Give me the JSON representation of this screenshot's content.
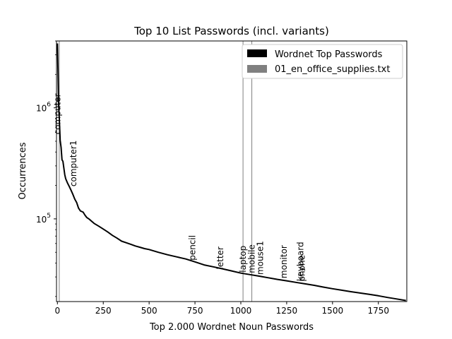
{
  "chart_data": {
    "type": "line",
    "title": "Top 10 List Passwords (incl. variants)",
    "xlabel": "Top 2.000 Wordnet Noun Passwords",
    "ylabel": "Occurrences",
    "yscale": "log",
    "xlim": [
      -5,
      1905
    ],
    "ylim": [
      18000,
      4000000
    ],
    "x_ticks": [
      {
        "value": 0,
        "label": "0"
      },
      {
        "value": 250,
        "label": "250"
      },
      {
        "value": 500,
        "label": "500"
      },
      {
        "value": 750,
        "label": "750"
      },
      {
        "value": 1000,
        "label": "1000"
      },
      {
        "value": 1250,
        "label": "1250"
      },
      {
        "value": 1500,
        "label": "1500"
      },
      {
        "value": 1750,
        "label": "1750"
      }
    ],
    "y_ticks": [
      {
        "value": 100000,
        "base": "10",
        "exp": "5"
      },
      {
        "value": 1000000,
        "base": "10",
        "exp": "6"
      }
    ],
    "legend_position": "top-right",
    "series": [
      {
        "name": "Wordnet Top Passwords",
        "color": "#000000",
        "x": [
          0,
          3,
          6,
          10,
          15,
          20,
          25,
          30,
          40,
          45,
          55,
          65,
          75,
          85,
          95,
          105,
          115,
          125,
          140,
          150,
          160,
          175,
          200,
          225,
          250,
          275,
          300,
          325,
          350,
          375,
          400,
          425,
          450,
          475,
          500,
          550,
          600,
          650,
          700,
          750,
          800,
          850,
          900,
          950,
          1000,
          1050,
          1100,
          1150,
          1200,
          1250,
          1300,
          1350,
          1400,
          1450,
          1500,
          1550,
          1600,
          1650,
          1700,
          1750,
          1800,
          1850,
          1900
        ],
        "values": [
          3800000,
          2200000,
          1100000,
          820000,
          510000,
          440000,
          340000,
          330000,
          250000,
          230000,
          210000,
          195000,
          180000,
          165000,
          150000,
          140000,
          125000,
          118000,
          115000,
          108000,
          103000,
          99000,
          91000,
          86000,
          81000,
          76000,
          71000,
          67000,
          63000,
          61000,
          59000,
          57000,
          55500,
          54000,
          53000,
          50000,
          47500,
          45500,
          43500,
          41000,
          38500,
          37000,
          35500,
          34000,
          32500,
          31500,
          30500,
          29500,
          28500,
          27700,
          26800,
          26000,
          25200,
          24300,
          23500,
          22800,
          22100,
          21500,
          20900,
          20300,
          19600,
          19000,
          18400
        ]
      },
      {
        "name": "01_en_office_supplies.txt",
        "color": "#808080",
        "marker_x": [
          10,
          1012,
          1060
        ]
      }
    ],
    "annotations": [
      {
        "text": "computer",
        "x": 0,
        "y": 560000
      },
      {
        "text": "computer1",
        "x": 87,
        "y": 190000
      },
      {
        "text": "pencil",
        "x": 737,
        "y": 41000
      },
      {
        "text": "letter",
        "x": 889,
        "y": 34000
      },
      {
        "text": "laptop",
        "x": 1012,
        "y": 32000
      },
      {
        "text": "mobile",
        "x": 1060,
        "y": 31500
      },
      {
        "text": "mouse1",
        "x": 1105,
        "y": 30500
      },
      {
        "text": "monitor",
        "x": 1235,
        "y": 28300
      },
      {
        "text": "keyboard",
        "x": 1325,
        "y": 26700
      },
      {
        "text": "phone",
        "x": 1333,
        "y": 26500
      }
    ]
  }
}
